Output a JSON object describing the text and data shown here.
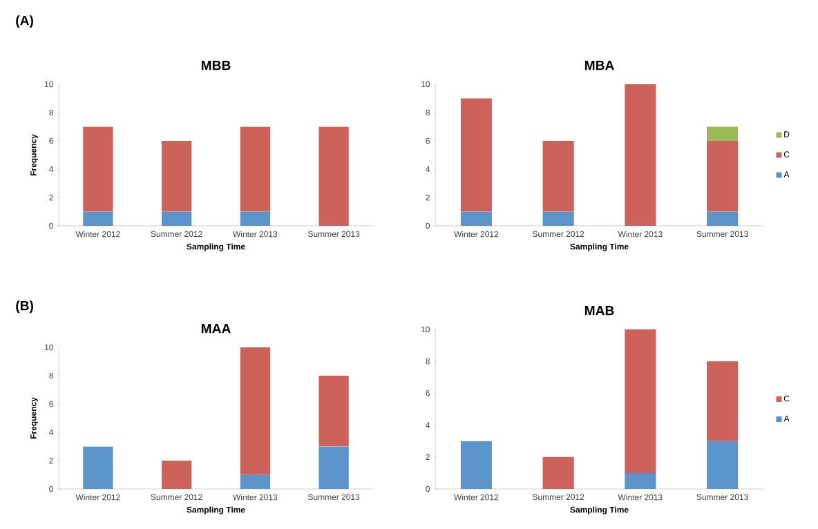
{
  "chart_data": [
    {
      "type": "bar",
      "title": "MBB",
      "xlabel": "Sampling Time",
      "ylabel": "Frequency",
      "annotations": [
        "(A)"
      ],
      "categories": [
        "Winter 2012",
        "Summer 2012",
        "Winter 2013",
        "Summer 2013"
      ],
      "stacked": true,
      "ylim": [
        0,
        10
      ],
      "yticks": [
        0,
        2,
        4,
        6,
        8,
        10
      ],
      "legend": false,
      "series": [
        {
          "color": "#5b93cb",
          "values": [
            1,
            1,
            1,
            0
          ]
        },
        {
          "color": "#cd625b",
          "values": [
            6,
            5,
            6,
            7
          ]
        }
      ]
    },
    {
      "type": "bar",
      "title": "MBA",
      "xlabel": "Sampling Time",
      "categories": [
        "Winter 2012",
        "Summer 2012",
        "Winter 2013",
        "Summer 2013"
      ],
      "stacked": true,
      "ylim": [
        0,
        10
      ],
      "yticks": [
        0,
        2,
        4,
        6,
        8,
        10
      ],
      "legend": "right",
      "series": [
        {
          "name": "A",
          "color": "#5b93cb",
          "values": [
            1,
            1,
            0,
            1
          ]
        },
        {
          "name": "C",
          "color": "#cd625b",
          "values": [
            8,
            5,
            10,
            5
          ]
        },
        {
          "name": "D",
          "color": "#9bbb59",
          "values": [
            0,
            0,
            0,
            1
          ]
        }
      ]
    },
    {
      "type": "bar",
      "title": "MAA",
      "xlabel": "Sampling Time",
      "ylabel": "Frequency",
      "annotations": [
        "(B)"
      ],
      "categories": [
        "Winter 2012",
        "Summer 2012",
        "Winter 2013",
        "Summer 2013"
      ],
      "stacked": true,
      "ylim": [
        0,
        10
      ],
      "yticks": [
        0,
        2,
        4,
        6,
        8,
        10
      ],
      "legend": false,
      "series": [
        {
          "color": "#5b93cb",
          "values": [
            3,
            0,
            1,
            3
          ]
        },
        {
          "color": "#cd625b",
          "values": [
            0,
            2,
            9,
            5
          ]
        }
      ]
    },
    {
      "type": "bar",
      "title": "MAB",
      "xlabel": "Sampling Time",
      "categories": [
        "Winter 2012",
        "Summer 2012",
        "Winter 2013",
        "Summer 2013"
      ],
      "stacked": true,
      "ylim": [
        0,
        10
      ],
      "yticks": [
        0,
        2,
        4,
        6,
        8,
        10
      ],
      "legend": "right",
      "series": [
        {
          "name": "A",
          "color": "#5b93cb",
          "values": [
            3,
            0,
            1,
            3
          ]
        },
        {
          "name": "C",
          "color": "#cd625b",
          "values": [
            0,
            2,
            9,
            5
          ]
        }
      ]
    }
  ]
}
